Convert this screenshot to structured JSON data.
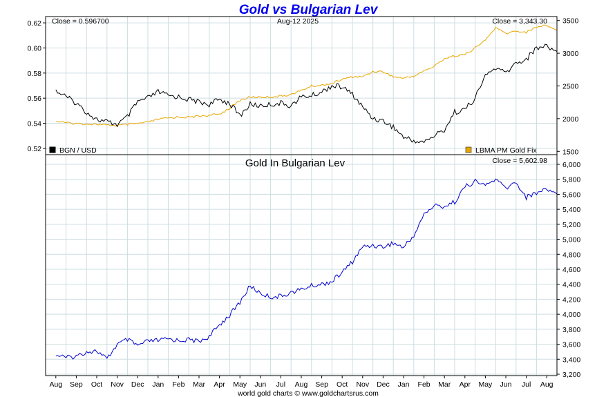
{
  "chart_data": {
    "title": "Gold vs Bulgarian Lev",
    "date_label": "Aug-12  2025",
    "footer": "world gold charts © www.goldchartsrus.com",
    "x_ticks": [
      "Aug",
      "Sep",
      "Oct",
      "Nov",
      "Dec",
      "Jan",
      "Feb",
      "Mar",
      "Apr",
      "May",
      "Jun",
      "Jul",
      "Aug",
      "Sep",
      "Oct",
      "Nov",
      "Dec",
      "Jan",
      "Feb",
      "Mar",
      "Apr",
      "May",
      "Jun",
      "Jul",
      "Aug"
    ],
    "colors": {
      "title": "#0000ee",
      "bgn": "#000000",
      "gold_usd": "#e8a600",
      "gold_bgn": "#0000cc",
      "grid": "#ccdde0",
      "frame": "#000000"
    },
    "top_panel": {
      "type": "line",
      "close_left": "Close = 0.596700",
      "close_right": "Close = 3,343.30",
      "left_ticks": [
        "0.62",
        "0.60",
        "0.58",
        "0.56",
        "0.54",
        "0.52"
      ],
      "right_ticks": [
        "3500",
        "3000",
        "2500",
        "2000",
        "1500"
      ],
      "left_ylim": [
        0.515,
        0.625
      ],
      "right_ylim": [
        1450,
        3560
      ],
      "legend_left": "BGN / USD",
      "legend_right": "LBMA PM Gold Fix",
      "series": [
        {
          "name": "BGN / USD",
          "axis": "left",
          "color": "#000000",
          "x": [
            0,
            0.5,
            1,
            1.5,
            2,
            2.5,
            3,
            3.5,
            4,
            4.5,
            5,
            5.5,
            6,
            6.5,
            7,
            7.5,
            8,
            8.5,
            9,
            9.5,
            10,
            10.5,
            11,
            11.5,
            12,
            12.5,
            13,
            13.5,
            14,
            14.5,
            15,
            15.5,
            16,
            16.5,
            17,
            17.5,
            18,
            18.5,
            19,
            19.5,
            20,
            20.5,
            21,
            21.5,
            22,
            22.5,
            23,
            23.5,
            24,
            24.5
          ],
          "y": [
            0.566,
            0.561,
            0.556,
            0.549,
            0.543,
            0.541,
            0.539,
            0.545,
            0.557,
            0.56,
            0.565,
            0.562,
            0.561,
            0.559,
            0.557,
            0.555,
            0.559,
            0.556,
            0.546,
            0.555,
            0.554,
            0.555,
            0.556,
            0.554,
            0.561,
            0.562,
            0.565,
            0.57,
            0.569,
            0.563,
            0.553,
            0.544,
            0.542,
            0.537,
            0.529,
            0.526,
            0.525,
            0.53,
            0.535,
            0.549,
            0.551,
            0.56,
            0.578,
            0.584,
            0.58,
            0.588,
            0.591,
            0.6,
            0.602,
            0.597
          ]
        },
        {
          "name": "LBMA PM Gold Fix",
          "axis": "right",
          "color": "#e8a600",
          "x": [
            0,
            0.5,
            1,
            1.5,
            2,
            2.5,
            3,
            3.5,
            4,
            4.5,
            5,
            5.5,
            6,
            6.5,
            7,
            7.5,
            8,
            8.5,
            9,
            9.5,
            10,
            10.5,
            11,
            11.5,
            12,
            12.5,
            13,
            13.5,
            14,
            14.5,
            15,
            15.5,
            16,
            16.5,
            17,
            17.5,
            18,
            18.5,
            19,
            19.5,
            20,
            20.5,
            21,
            21.5,
            22,
            22.5,
            23,
            23.5,
            24,
            24.5
          ],
          "y": [
            1960,
            1935,
            1925,
            1920,
            1915,
            1900,
            1895,
            1910,
            1925,
            1945,
            1990,
            2010,
            2025,
            2020,
            2040,
            2050,
            2070,
            2160,
            2280,
            2330,
            2330,
            2330,
            2345,
            2370,
            2430,
            2500,
            2510,
            2540,
            2600,
            2640,
            2640,
            2720,
            2720,
            2640,
            2620,
            2650,
            2730,
            2800,
            2920,
            2960,
            2980,
            3080,
            3200,
            3390,
            3300,
            3340,
            3320,
            3400,
            3430,
            3343
          ]
        }
      ]
    },
    "bottom_panel": {
      "type": "line",
      "title": "Gold In Bulgarian Lev",
      "close_right": "Close = 5,602.98",
      "right_ticks": [
        "6,000",
        "5,800",
        "5,600",
        "5,400",
        "5,200",
        "5,000",
        "4,800",
        "4,600",
        "4,400",
        "4,200",
        "4,000",
        "3,800",
        "3,600",
        "3,400",
        "3,200"
      ],
      "ylim": [
        3200,
        6000
      ],
      "series": [
        {
          "name": "Gold In Bulgarian Lev",
          "color": "#0000cc",
          "x": [
            0,
            0.5,
            1,
            1.5,
            2,
            2.5,
            3,
            3.5,
            4,
            4.5,
            5,
            5.5,
            6,
            6.5,
            7,
            7.5,
            8,
            8.5,
            9,
            9.5,
            10,
            10.5,
            11,
            11.5,
            12,
            12.5,
            13,
            13.5,
            14,
            14.5,
            15,
            15.5,
            16,
            16.5,
            17,
            17.5,
            18,
            18.5,
            19,
            19.5,
            20,
            20.5,
            21,
            21.5,
            22,
            22.5,
            23,
            23.5,
            24,
            24.5
          ],
          "y": [
            3460,
            3420,
            3440,
            3500,
            3510,
            3400,
            3600,
            3660,
            3580,
            3640,
            3650,
            3670,
            3650,
            3660,
            3640,
            3700,
            3860,
            3990,
            4160,
            4380,
            4280,
            4230,
            4240,
            4290,
            4330,
            4380,
            4400,
            4440,
            4560,
            4700,
            4900,
            4920,
            4900,
            4950,
            4890,
            5050,
            5330,
            5450,
            5440,
            5500,
            5700,
            5770,
            5720,
            5800,
            5680,
            5760,
            5560,
            5620,
            5680,
            5603
          ]
        }
      ]
    }
  }
}
